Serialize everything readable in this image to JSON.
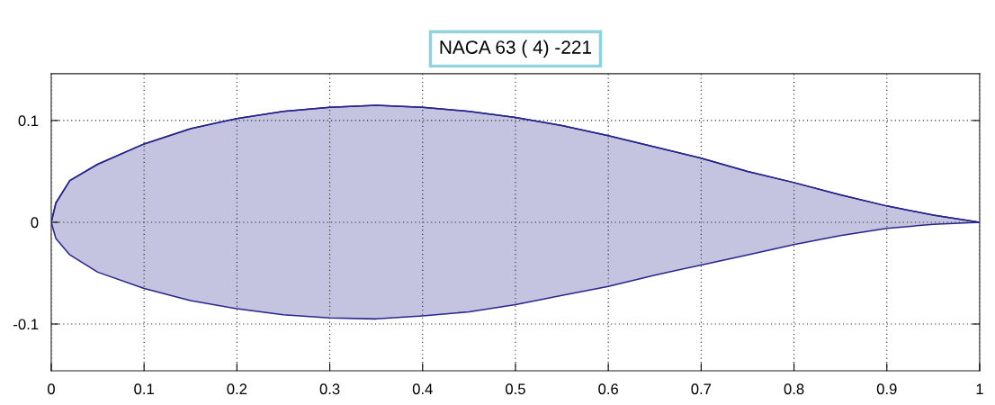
{
  "chart_data": {
    "type": "line",
    "title": "NACA 63 ( 4) -221",
    "x": [
      0,
      0.005,
      0.02,
      0.05,
      0.1,
      0.15,
      0.2,
      0.25,
      0.3,
      0.35,
      0.4,
      0.45,
      0.5,
      0.55,
      0.6,
      0.65,
      0.7,
      0.75,
      0.8,
      0.85,
      0.9,
      0.95,
      1
    ],
    "series": [
      {
        "color": "#26268c",
        "values": [
          0,
          0.019,
          0.041,
          0.057,
          0.077,
          0.092,
          0.102,
          0.109,
          0.113,
          0.115,
          0.113,
          0.109,
          0.103,
          0.095,
          0.085,
          0.074,
          0.063,
          0.05,
          0.039,
          0.027,
          0.016,
          0.007,
          0
        ],
        "upper": [
          0,
          0.019,
          0.041,
          0.057,
          0.077,
          0.092,
          0.102,
          0.109,
          0.113,
          0.115,
          0.113,
          0.109,
          0.103,
          0.095,
          0.085,
          0.074,
          0.063,
          0.05,
          0.039,
          0.027,
          0.016,
          0.007,
          0
        ],
        "lower": [
          0,
          -0.016,
          -0.032,
          -0.049,
          -0.065,
          -0.077,
          -0.085,
          -0.091,
          -0.094,
          -0.095,
          -0.092,
          -0.088,
          -0.081,
          -0.072,
          -0.063,
          -0.052,
          -0.042,
          -0.032,
          -0.022,
          -0.013,
          -0.006,
          -0.002,
          0
        ]
      }
    ],
    "xlim": [
      0,
      1
    ],
    "ylim": [
      -0.146,
      0.146
    ],
    "xticks": [
      0,
      0.1,
      0.2,
      0.3,
      0.4,
      0.5,
      0.6,
      0.7,
      0.8,
      0.9,
      1
    ],
    "yticks": [
      -0.1,
      0,
      0.1
    ],
    "grid": true,
    "legend": false
  }
}
